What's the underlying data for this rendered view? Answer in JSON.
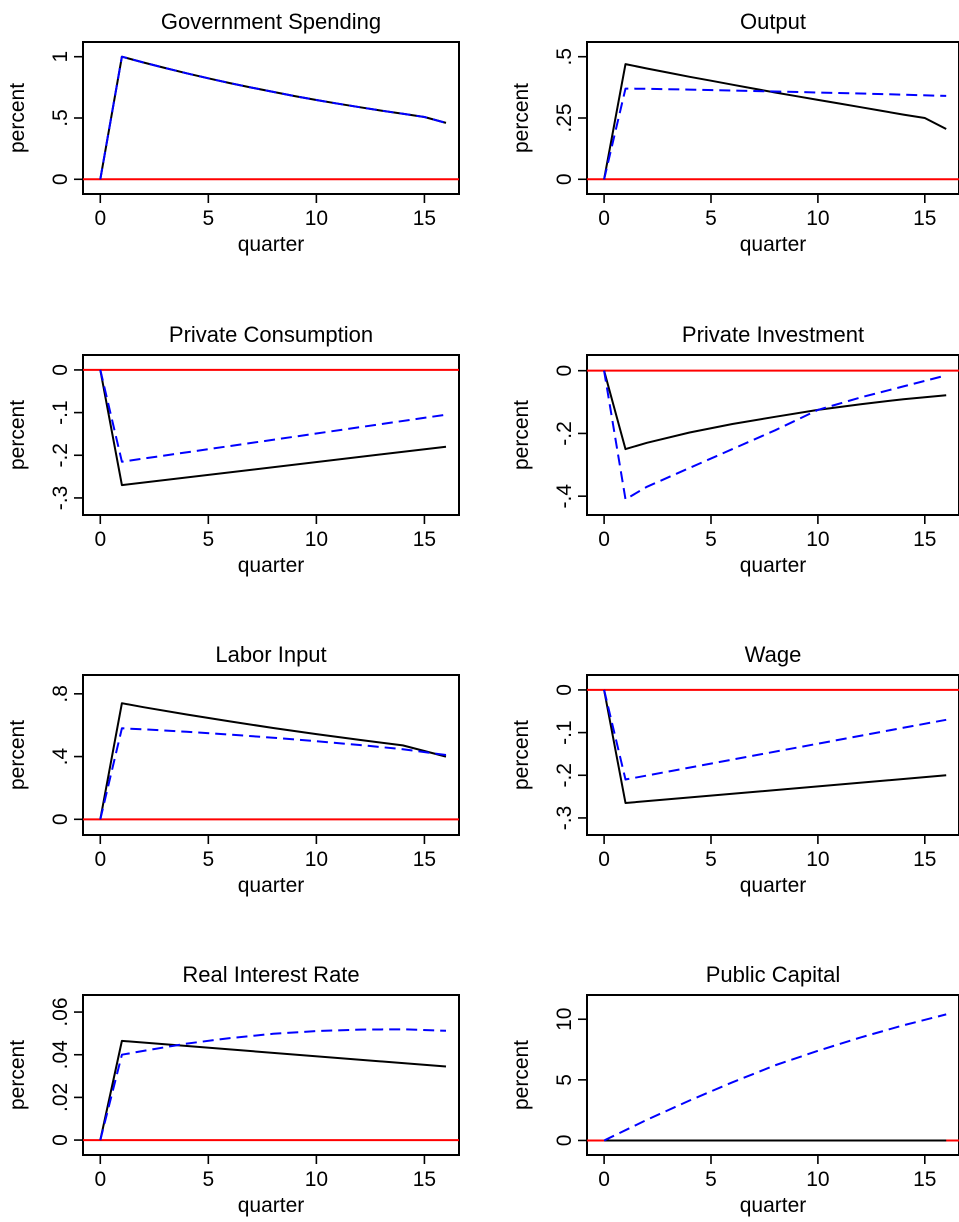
{
  "chart_data": [
    {
      "type": "line",
      "title": "Government Spending",
      "xlabel": "quarter",
      "ylabel": "percent",
      "xlim": [
        -0.8,
        16.6
      ],
      "ylim": [
        -0.12,
        1.12
      ],
      "xticks": [
        0,
        5,
        10,
        15
      ],
      "xticklabels": [
        "0",
        "5",
        "10",
        "15"
      ],
      "yticks": [
        0,
        0.5,
        1
      ],
      "yticklabels": [
        "0",
        ".5",
        "1"
      ],
      "zero_line": 0,
      "grid": false,
      "series": [
        {
          "color": "#000000",
          "style": "solid",
          "x": [
            0,
            1,
            2,
            3,
            4,
            5,
            6,
            7,
            8,
            9,
            10,
            11,
            12,
            13,
            14,
            15,
            16
          ],
          "y": [
            0,
            1,
            0.953,
            0.908,
            0.865,
            0.824,
            0.785,
            0.748,
            0.713,
            0.679,
            0.647,
            0.617,
            0.588,
            0.56,
            0.534,
            0.508,
            0.46
          ]
        },
        {
          "color": "#0000ff",
          "style": "dashed",
          "x": [
            0,
            1,
            2,
            3,
            4,
            5,
            6,
            7,
            8,
            9,
            10,
            11,
            12,
            13,
            14,
            15,
            16
          ],
          "y": [
            0,
            1,
            0.953,
            0.908,
            0.865,
            0.824,
            0.785,
            0.748,
            0.713,
            0.679,
            0.647,
            0.617,
            0.588,
            0.56,
            0.534,
            0.508,
            0.46
          ]
        }
      ]
    },
    {
      "type": "line",
      "title": "Output",
      "xlabel": "quarter",
      "ylabel": "percent",
      "xlim": [
        -0.8,
        16.6
      ],
      "ylim": [
        -0.06,
        0.56
      ],
      "xticks": [
        0,
        5,
        10,
        15
      ],
      "xticklabels": [
        "0",
        "5",
        "10",
        "15"
      ],
      "yticks": [
        0,
        0.25,
        0.5
      ],
      "yticklabels": [
        "0",
        ".25",
        ".5"
      ],
      "zero_line": 0,
      "grid": false,
      "series": [
        {
          "color": "#000000",
          "style": "solid",
          "x": [
            0,
            1,
            2,
            3,
            4,
            5,
            6,
            7,
            8,
            9,
            10,
            11,
            12,
            13,
            14,
            15,
            16
          ],
          "y": [
            0,
            0.47,
            0.452,
            0.435,
            0.418,
            0.402,
            0.386,
            0.37,
            0.354,
            0.339,
            0.324,
            0.309,
            0.294,
            0.279,
            0.264,
            0.25,
            0.205
          ]
        },
        {
          "color": "#0000ff",
          "style": "dashed",
          "x": [
            0,
            1,
            2,
            4,
            6,
            8,
            10,
            12,
            14,
            16
          ],
          "y": [
            0,
            0.37,
            0.369,
            0.366,
            0.362,
            0.358,
            0.354,
            0.35,
            0.345,
            0.34
          ]
        }
      ]
    },
    {
      "type": "line",
      "title": "Private Consumption",
      "xlabel": "quarter",
      "ylabel": "percent",
      "xlim": [
        -0.8,
        16.6
      ],
      "ylim": [
        -0.34,
        0.035
      ],
      "xticks": [
        0,
        5,
        10,
        15
      ],
      "xticklabels": [
        "0",
        "5",
        "10",
        "15"
      ],
      "yticks": [
        0,
        -0.1,
        -0.2,
        -0.3
      ],
      "yticklabels": [
        "0",
        "-.1",
        "-.2",
        "-.3"
      ],
      "zero_line": 0,
      "grid": false,
      "series": [
        {
          "color": "#000000",
          "style": "solid",
          "x": [
            0,
            1,
            16
          ],
          "y": [
            0,
            -0.27,
            -0.18
          ]
        },
        {
          "color": "#0000ff",
          "style": "dashed",
          "x": [
            0,
            1,
            16
          ],
          "y": [
            0,
            -0.215,
            -0.105
          ]
        }
      ]
    },
    {
      "type": "line",
      "title": "Private Investment",
      "xlabel": "quarter",
      "ylabel": "percent",
      "xlim": [
        -0.8,
        16.6
      ],
      "ylim": [
        -0.46,
        0.05
      ],
      "xticks": [
        0,
        5,
        10,
        15
      ],
      "xticklabels": [
        "0",
        "5",
        "10",
        "15"
      ],
      "yticks": [
        0,
        -0.2,
        -0.4
      ],
      "yticklabels": [
        "0",
        "-.2",
        "-.4"
      ],
      "zero_line": 0,
      "grid": false,
      "series": [
        {
          "color": "#000000",
          "style": "solid",
          "x": [
            0,
            1,
            2,
            4,
            6,
            8,
            10,
            12,
            14,
            16
          ],
          "y": [
            0,
            -0.25,
            -0.23,
            -0.197,
            -0.17,
            -0.147,
            -0.125,
            -0.107,
            -0.091,
            -0.078
          ]
        },
        {
          "color": "#0000ff",
          "style": "dashed",
          "x": [
            0,
            1,
            2,
            4,
            6,
            8,
            10,
            12,
            14,
            16
          ],
          "y": [
            0,
            -0.41,
            -0.37,
            -0.31,
            -0.25,
            -0.19,
            -0.125,
            -0.085,
            -0.05,
            -0.015
          ]
        }
      ]
    },
    {
      "type": "line",
      "title": "Labor Input",
      "xlabel": "quarter",
      "ylabel": "percent",
      "xlim": [
        -0.8,
        16.6
      ],
      "ylim": [
        -0.1,
        0.92
      ],
      "xticks": [
        0,
        5,
        10,
        15
      ],
      "xticklabels": [
        "0",
        "5",
        "10",
        "15"
      ],
      "yticks": [
        0,
        0.4,
        0.8
      ],
      "yticklabels": [
        "0",
        ".4",
        ".8"
      ],
      "zero_line": 0,
      "grid": false,
      "series": [
        {
          "color": "#000000",
          "style": "solid",
          "x": [
            0,
            1,
            2,
            4,
            6,
            8,
            10,
            12,
            14,
            16
          ],
          "y": [
            0,
            0.74,
            0.715,
            0.668,
            0.624,
            0.582,
            0.543,
            0.506,
            0.471,
            0.4
          ]
        },
        {
          "color": "#0000ff",
          "style": "dashed",
          "x": [
            0,
            1,
            2,
            4,
            6,
            8,
            10,
            12,
            14,
            16
          ],
          "y": [
            0,
            0.58,
            0.574,
            0.558,
            0.54,
            0.52,
            0.498,
            0.474,
            0.447,
            0.41
          ]
        }
      ]
    },
    {
      "type": "line",
      "title": "Wage",
      "xlabel": "quarter",
      "ylabel": "percent",
      "xlim": [
        -0.8,
        16.6
      ],
      "ylim": [
        -0.34,
        0.035
      ],
      "xticks": [
        0,
        5,
        10,
        15
      ],
      "xticklabels": [
        "0",
        "5",
        "10",
        "15"
      ],
      "yticks": [
        0,
        -0.1,
        -0.2,
        -0.3
      ],
      "yticklabels": [
        "0",
        "-.1",
        "-.2",
        "-.3"
      ],
      "zero_line": 0,
      "grid": false,
      "series": [
        {
          "color": "#000000",
          "style": "solid",
          "x": [
            0,
            1,
            16
          ],
          "y": [
            0,
            -0.265,
            -0.2
          ]
        },
        {
          "color": "#0000ff",
          "style": "dashed",
          "x": [
            0,
            1,
            16
          ],
          "y": [
            0,
            -0.21,
            -0.07
          ]
        }
      ]
    },
    {
      "type": "line",
      "title": "Real Interest Rate",
      "xlabel": "quarter",
      "ylabel": "percent",
      "xlim": [
        -0.8,
        16.6
      ],
      "ylim": [
        -0.007,
        0.068
      ],
      "xticks": [
        0,
        5,
        10,
        15
      ],
      "xticklabels": [
        "0",
        "5",
        "10",
        "15"
      ],
      "yticks": [
        0,
        0.02,
        0.04,
        0.06
      ],
      "yticklabels": [
        "0",
        ".02",
        ".04",
        ".06"
      ],
      "zero_line": 0,
      "grid": false,
      "series": [
        {
          "color": "#000000",
          "style": "solid",
          "x": [
            0,
            1,
            16
          ],
          "y": [
            0,
            0.0465,
            0.0345
          ]
        },
        {
          "color": "#0000ff",
          "style": "dashed",
          "x": [
            0,
            1,
            2,
            4,
            6,
            8,
            10,
            12,
            14,
            16
          ],
          "y": [
            0,
            0.04,
            0.0418,
            0.0452,
            0.0478,
            0.0498,
            0.0511,
            0.0518,
            0.0519,
            0.0512
          ]
        }
      ]
    },
    {
      "type": "line",
      "title": "Public Capital",
      "xlabel": "quarter",
      "ylabel": "percent",
      "xlim": [
        -0.8,
        16.6
      ],
      "ylim": [
        -1.2,
        12.0
      ],
      "xticks": [
        0,
        5,
        10,
        15
      ],
      "xticklabels": [
        "0",
        "5",
        "10",
        "15"
      ],
      "yticks": [
        0,
        5,
        10
      ],
      "yticklabels": [
        "0",
        "5",
        "10"
      ],
      "zero_line": 0,
      "grid": false,
      "series": [
        {
          "color": "#000000",
          "style": "solid",
          "x": [
            0,
            16
          ],
          "y": [
            0,
            0
          ]
        },
        {
          "color": "#0000ff",
          "style": "dashed",
          "x": [
            0,
            2,
            4,
            6,
            8,
            10,
            12,
            14,
            16
          ],
          "y": [
            0,
            1.7,
            3.3,
            4.8,
            6.2,
            7.4,
            8.5,
            9.5,
            10.4
          ]
        }
      ]
    }
  ]
}
